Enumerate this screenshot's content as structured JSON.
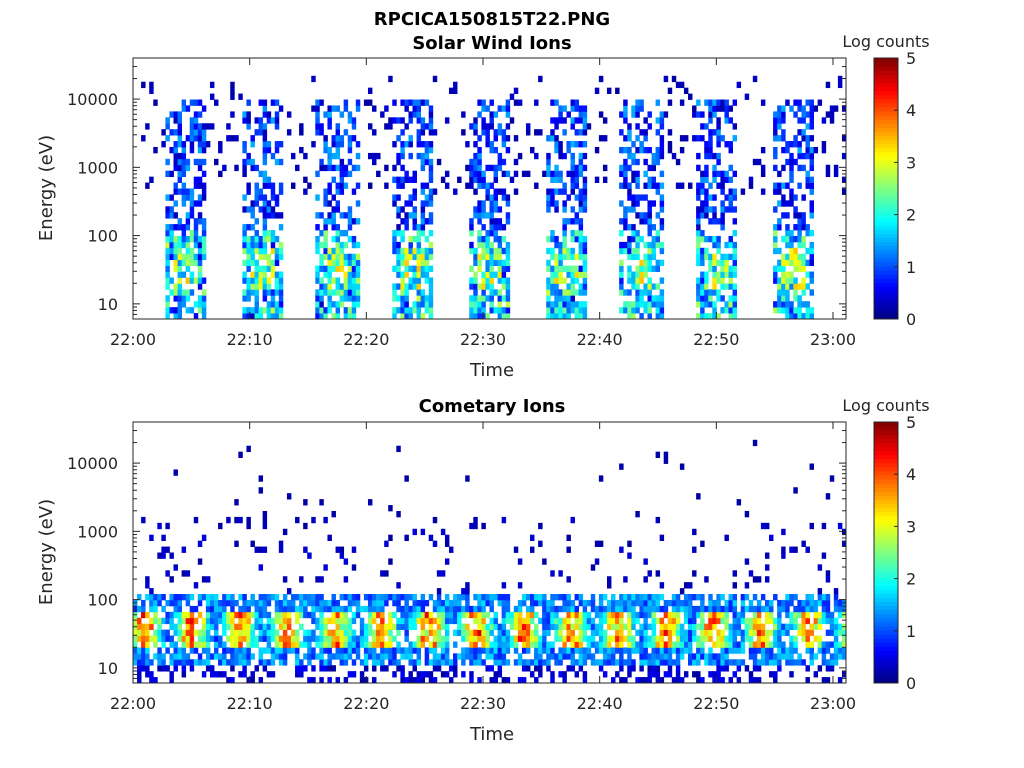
{
  "figure_title": "RPCICA150815T22.PNG",
  "chart_data": [
    {
      "type": "heatmap",
      "title": "Solar Wind Ions",
      "xlabel": "Time",
      "ylabel": "Energy (eV)",
      "x_ticks": [
        "22:00",
        "22:10",
        "22:20",
        "22:30",
        "22:40",
        "22:50",
        "23:00"
      ],
      "x_range": [
        "22:00",
        "23:00"
      ],
      "y_ticks": [
        "10",
        "100",
        "1000",
        "10000"
      ],
      "y_scale": "log",
      "y_range": [
        6,
        40000
      ],
      "colorbar": {
        "label": "Log counts",
        "ticks": [
          "0",
          "1",
          "2",
          "3",
          "4",
          "5"
        ],
        "range": [
          0,
          5
        ],
        "colormap": "jet"
      },
      "sweep_times_min": [
        4.5,
        11.0,
        17.5,
        24.0,
        30.5,
        37.0,
        43.5,
        50.0,
        56.5
      ],
      "peak_energy_eV": 35,
      "peak_log_counts": 3.2,
      "background_extent_eV": [
        6,
        40000
      ]
    },
    {
      "type": "heatmap",
      "title": "Cometary Ions",
      "xlabel": "Time",
      "ylabel": "Energy (eV)",
      "x_ticks": [
        "22:00",
        "22:10",
        "22:20",
        "22:30",
        "22:40",
        "22:50",
        "23:00"
      ],
      "x_range": [
        "22:00",
        "23:00"
      ],
      "y_ticks": [
        "10",
        "100",
        "1000",
        "10000"
      ],
      "y_scale": "log",
      "y_range": [
        6,
        40000
      ],
      "colorbar": {
        "label": "Log counts",
        "ticks": [
          "0",
          "1",
          "2",
          "3",
          "4",
          "5"
        ],
        "range": [
          0,
          5
        ],
        "colormap": "jet"
      },
      "peak_energy_eV": 35,
      "peak_log_counts": 4.0,
      "band_extent_eV": [
        6,
        100
      ]
    }
  ]
}
